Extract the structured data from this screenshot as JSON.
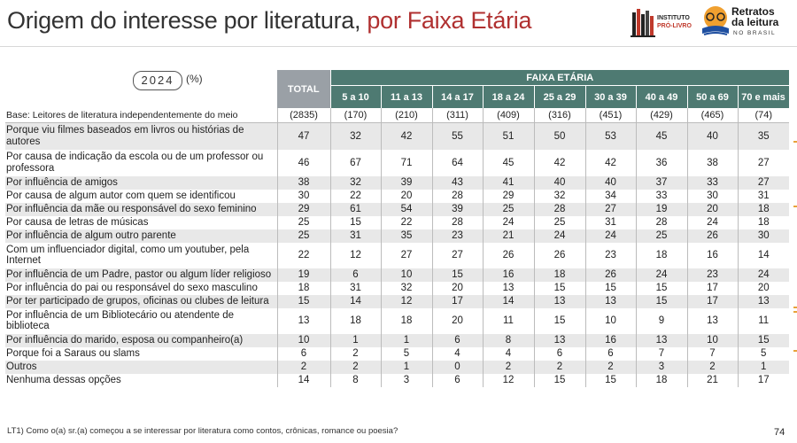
{
  "header": {
    "title_main": "Origem do interesse por literatura,",
    "title_accent": " por Faixa Etária",
    "logo_instituto": "INSTITUTO",
    "logo_prolivro": "PRÓ-LIVRO",
    "logo_retratos_1": "Retratos",
    "logo_retratos_2": "da leitura",
    "logo_brasil": "NO BRASIL"
  },
  "meta": {
    "year": "2024",
    "unit": "(%)",
    "page": "74",
    "footnote": "LT1) Como o(a) sr.(a) começou a se interessar por literatura como contos, crônicas, romance ou poesia?"
  },
  "table": {
    "total_label": "TOTAL",
    "group_label": "FAIXA ETÁRIA",
    "age_groups": [
      "5 a 10",
      "11 a 13",
      "14 a 17",
      "18 a 24",
      "25 a 29",
      "30 a 39",
      "40 a 49",
      "50 a 69",
      "70 e mais"
    ],
    "base": {
      "label": "Base: Leitores de literatura independentemente do meio",
      "values": [
        "(2835)",
        "(170)",
        "(210)",
        "(311)",
        "(409)",
        "(316)",
        "(451)",
        "(429)",
        "(465)",
        "(74)"
      ]
    },
    "rows": [
      {
        "label": "Porque viu filmes baseados em livros ou histórias de autores",
        "values": [
          "47",
          "32",
          "42",
          "55",
          "51",
          "50",
          "53",
          "45",
          "40",
          "35"
        ]
      },
      {
        "label": "Por causa de indicação da escola ou de um professor ou professora",
        "values": [
          "46",
          "67",
          "71",
          "64",
          "45",
          "42",
          "42",
          "36",
          "38",
          "27"
        ]
      },
      {
        "label": "Por influência de amigos",
        "values": [
          "38",
          "32",
          "39",
          "43",
          "41",
          "40",
          "40",
          "37",
          "33",
          "27"
        ]
      },
      {
        "label": "Por causa de algum autor com quem se identificou",
        "values": [
          "30",
          "22",
          "20",
          "28",
          "29",
          "32",
          "34",
          "33",
          "30",
          "31"
        ]
      },
      {
        "label": "Por influência da mãe ou responsável do sexo feminino",
        "values": [
          "29",
          "61",
          "54",
          "39",
          "25",
          "28",
          "27",
          "19",
          "20",
          "18"
        ]
      },
      {
        "label": "Por causa de letras de músicas",
        "values": [
          "25",
          "15",
          "22",
          "28",
          "24",
          "25",
          "31",
          "28",
          "24",
          "18"
        ]
      },
      {
        "label": "Por influência de algum outro parente",
        "values": [
          "25",
          "31",
          "35",
          "23",
          "21",
          "24",
          "24",
          "25",
          "26",
          "30"
        ]
      },
      {
        "label": "Com um influenciador digital, como um youtuber, pela Internet",
        "values": [
          "22",
          "12",
          "27",
          "27",
          "26",
          "26",
          "23",
          "18",
          "16",
          "14"
        ]
      },
      {
        "label": "Por influência de um Padre, pastor ou algum líder religioso",
        "values": [
          "19",
          "6",
          "10",
          "15",
          "16",
          "18",
          "26",
          "24",
          "23",
          "24"
        ]
      },
      {
        "label": "Por influência do pai ou responsável do sexo masculino",
        "values": [
          "18",
          "31",
          "32",
          "20",
          "13",
          "15",
          "15",
          "15",
          "17",
          "20"
        ]
      },
      {
        "label": "Por ter participado de grupos, oficinas ou clubes de leitura",
        "values": [
          "15",
          "14",
          "12",
          "17",
          "14",
          "13",
          "13",
          "15",
          "17",
          "13"
        ]
      },
      {
        "label": "Por influência de um Bibliotecário ou atendente de biblioteca",
        "values": [
          "13",
          "18",
          "18",
          "20",
          "11",
          "15",
          "10",
          "9",
          "13",
          "11"
        ]
      },
      {
        "label": "Por influência do marido, esposa ou companheiro(a)",
        "values": [
          "10",
          "1",
          "1",
          "6",
          "8",
          "13",
          "16",
          "13",
          "10",
          "15"
        ]
      },
      {
        "label": "Porque foi a Saraus ou slams",
        "values": [
          "6",
          "2",
          "5",
          "4",
          "4",
          "6",
          "6",
          "7",
          "7",
          "5"
        ]
      },
      {
        "label": "Outros",
        "values": [
          "2",
          "2",
          "1",
          "0",
          "2",
          "2",
          "2",
          "3",
          "2",
          "1"
        ]
      },
      {
        "label": "Nenhuma dessas opções",
        "values": [
          "14",
          "8",
          "3",
          "6",
          "12",
          "15",
          "15",
          "18",
          "21",
          "17"
        ]
      }
    ]
  }
}
